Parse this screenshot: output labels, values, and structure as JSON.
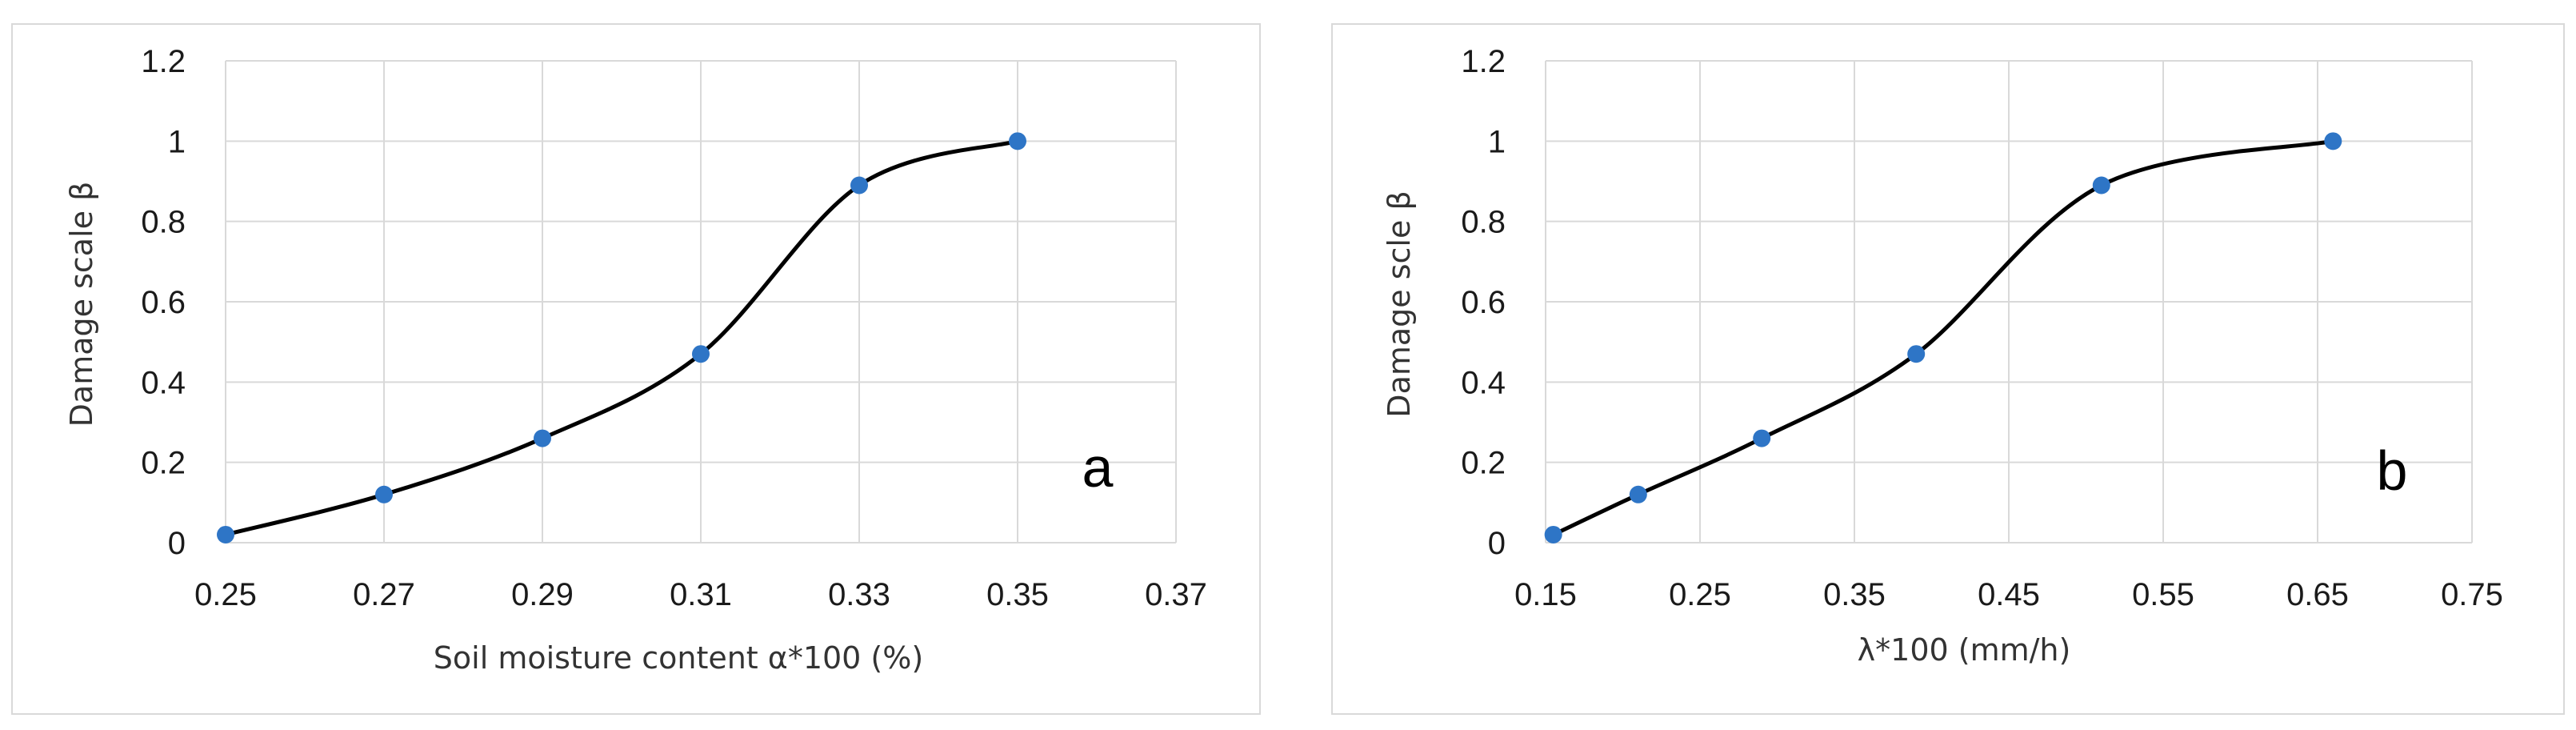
{
  "chart_data": [
    {
      "type": "scatter",
      "panel_label": "a",
      "xlabel": "Soil moisture content α*100 (%)",
      "ylabel": "Damage scale β",
      "xlim": [
        0.25,
        0.37
      ],
      "ylim": [
        0,
        1.2
      ],
      "xticks": [
        "0.25",
        "0.27",
        "0.29",
        "0.31",
        "0.33",
        "0.35",
        "0.37"
      ],
      "yticks": [
        "0",
        "0.2",
        "0.4",
        "0.6",
        "0.8",
        "1",
        "1.2"
      ],
      "grid": true,
      "legend": "none",
      "smooth_line": true,
      "marker_color": "#2e75c6",
      "line_color": "#000000",
      "points": [
        {
          "x": 0.25,
          "y": 0.02
        },
        {
          "x": 0.27,
          "y": 0.12
        },
        {
          "x": 0.29,
          "y": 0.26
        },
        {
          "x": 0.31,
          "y": 0.47
        },
        {
          "x": 0.33,
          "y": 0.89
        },
        {
          "x": 0.35,
          "y": 1.0
        }
      ]
    },
    {
      "type": "scatter",
      "panel_label": "b",
      "xlabel": "λ*100 (mm/h)",
      "ylabel": "Damage scle β",
      "xlim": [
        0.15,
        0.75
      ],
      "ylim": [
        0,
        1.2
      ],
      "xticks": [
        "0.15",
        "0.25",
        "0.35",
        "0.45",
        "0.55",
        "0.65",
        "0.75"
      ],
      "yticks": [
        "0",
        "0.2",
        "0.4",
        "0.6",
        "0.8",
        "1",
        "1.2"
      ],
      "grid": true,
      "legend": "none",
      "smooth_line": true,
      "marker_color": "#2e75c6",
      "line_color": "#000000",
      "points": [
        {
          "x": 0.155,
          "y": 0.02
        },
        {
          "x": 0.21,
          "y": 0.12
        },
        {
          "x": 0.29,
          "y": 0.26
        },
        {
          "x": 0.39,
          "y": 0.47
        },
        {
          "x": 0.51,
          "y": 0.89
        },
        {
          "x": 0.66,
          "y": 1.0
        }
      ]
    }
  ]
}
